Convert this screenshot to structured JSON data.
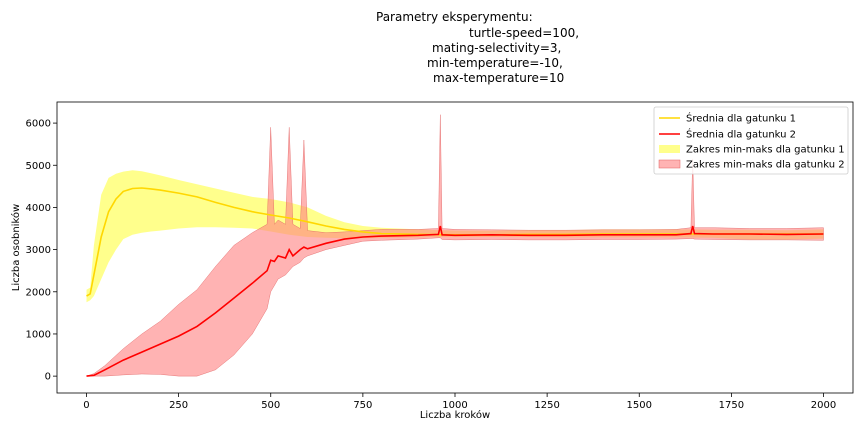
{
  "chart_data": {
    "type": "line",
    "title_lines": [
      "Parametry eksperymentu:",
      "turtle-speed=100,",
      "mating-selectivity=3,",
      "min-temperature=-10,",
      "max-temperature=10"
    ],
    "xlabel": "Liczba kroków",
    "ylabel": "Liczba osobników",
    "xlim": [
      -80,
      2080
    ],
    "ylim": [
      -400,
      6500
    ],
    "xticks": [
      0,
      250,
      500,
      750,
      1000,
      1250,
      1500,
      1750,
      2000
    ],
    "yticks": [
      0,
      1000,
      2000,
      3000,
      4000,
      5000,
      6000
    ],
    "grid": false,
    "legend_position": "top-right",
    "colors": {
      "mean1": "#ffd700",
      "mean2": "#ff0000",
      "band1": "#ffff66",
      "band2": "#ff8080",
      "band2_edge": "#e06060"
    },
    "series": [
      {
        "name": "Średnia dla gatunku 1",
        "x": [
          0,
          10,
          20,
          40,
          60,
          80,
          100,
          125,
          150,
          175,
          200,
          250,
          300,
          350,
          400,
          450,
          500,
          550,
          600,
          650,
          700,
          750,
          800,
          900,
          1000,
          1100,
          1200,
          1300,
          1400,
          1500,
          1600,
          1700,
          1800,
          1900,
          2000
        ],
        "mean": [
          1900,
          1950,
          2400,
          3300,
          3900,
          4200,
          4380,
          4450,
          4460,
          4440,
          4410,
          4340,
          4250,
          4120,
          4000,
          3900,
          3820,
          3750,
          3660,
          3560,
          3480,
          3420,
          3380,
          3360,
          3350,
          3350,
          3360,
          3360,
          3370,
          3370,
          3370,
          3370,
          3370,
          3370,
          3370
        ],
        "min": [
          1750,
          1800,
          1900,
          2300,
          2700,
          3000,
          3250,
          3350,
          3400,
          3430,
          3450,
          3500,
          3530,
          3530,
          3520,
          3500,
          3430,
          3350,
          3300,
          3280,
          3270,
          3270,
          3280,
          3290,
          3300,
          3300,
          3300,
          3290,
          3290,
          3290,
          3290,
          3280,
          3240,
          3240,
          3260
        ],
        "max": [
          2050,
          2100,
          3100,
          4300,
          4700,
          4800,
          4850,
          4880,
          4860,
          4810,
          4760,
          4650,
          4550,
          4450,
          4350,
          4250,
          4200,
          4120,
          4000,
          3800,
          3650,
          3560,
          3520,
          3480,
          3450,
          3450,
          3460,
          3460,
          3480,
          3480,
          3480,
          3470,
          3470,
          3460,
          3480
        ]
      },
      {
        "name": "Średnia dla gatunku 2",
        "x": [
          0,
          20,
          50,
          100,
          150,
          200,
          250,
          300,
          350,
          400,
          450,
          490,
          500,
          510,
          520,
          540,
          550,
          560,
          580,
          590,
          600,
          650,
          700,
          750,
          800,
          900,
          955,
          960,
          965,
          1000,
          1100,
          1200,
          1300,
          1400,
          1500,
          1600,
          1640,
          1645,
          1650,
          1700,
          1800,
          1900,
          2000
        ],
        "mean": [
          0,
          20,
          150,
          380,
          570,
          760,
          950,
          1180,
          1500,
          1850,
          2200,
          2500,
          2750,
          2720,
          2850,
          2800,
          3000,
          2850,
          3000,
          3060,
          3020,
          3150,
          3250,
          3300,
          3320,
          3340,
          3360,
          3560,
          3350,
          3340,
          3350,
          3340,
          3340,
          3350,
          3350,
          3350,
          3380,
          3560,
          3380,
          3370,
          3370,
          3360,
          3370
        ],
        "min": [
          0,
          0,
          0,
          30,
          50,
          40,
          0,
          0,
          150,
          500,
          1000,
          1600,
          2000,
          2150,
          2300,
          2400,
          2500,
          2600,
          2700,
          2800,
          2850,
          3000,
          3100,
          3200,
          3220,
          3250,
          3280,
          3280,
          3240,
          3230,
          3240,
          3230,
          3230,
          3240,
          3240,
          3250,
          3260,
          3260,
          3250,
          3240,
          3230,
          3230,
          3220
        ],
        "max": [
          0,
          60,
          250,
          650,
          1000,
          1300,
          1700,
          2050,
          2600,
          3100,
          3400,
          3600,
          5900,
          3600,
          3700,
          3600,
          5900,
          3600,
          3500,
          5600,
          3450,
          3400,
          3420,
          3450,
          3480,
          3480,
          3500,
          6200,
          3500,
          3480,
          3470,
          3460,
          3460,
          3470,
          3470,
          3480,
          3520,
          5150,
          3520,
          3520,
          3500,
          3500,
          3520
        ]
      }
    ],
    "band_labels": [
      "Zakres min-maks dla gatunku 1",
      "Zakres min-maks dla gatunku 2"
    ]
  }
}
